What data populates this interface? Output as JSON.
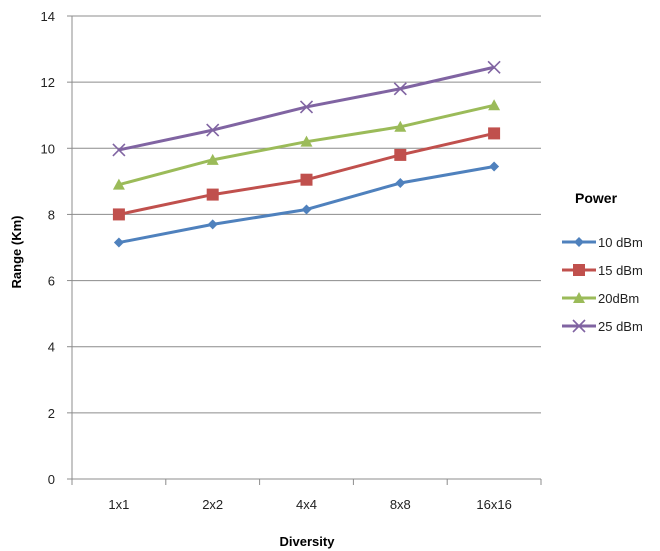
{
  "chart_data": {
    "type": "line",
    "title": "",
    "xlabel": "Diversity",
    "ylabel": "Range (Km)",
    "categories": [
      "1x1",
      "2x2",
      "4x4",
      "8x8",
      "16x16"
    ],
    "ylim": [
      0,
      14
    ],
    "yticks": [
      0,
      2,
      4,
      6,
      8,
      10,
      12,
      14
    ],
    "grid": true,
    "legend_title": "Power",
    "legend_position": "right",
    "series": [
      {
        "name": "10 dBm",
        "color": "#4f81bd",
        "marker": "diamond",
        "values": [
          7.15,
          7.7,
          8.15,
          8.95,
          9.45
        ]
      },
      {
        "name": "15 dBm",
        "color": "#c0504d",
        "marker": "square",
        "values": [
          8.0,
          8.6,
          9.05,
          9.8,
          10.45
        ]
      },
      {
        "name": "20dBm",
        "color": "#9bbb59",
        "marker": "triangle",
        "values": [
          8.9,
          9.65,
          10.2,
          10.65,
          11.3
        ]
      },
      {
        "name": "25 dBm",
        "color": "#8064a2",
        "marker": "x",
        "values": [
          9.95,
          10.55,
          11.25,
          11.8,
          12.45
        ]
      }
    ]
  }
}
